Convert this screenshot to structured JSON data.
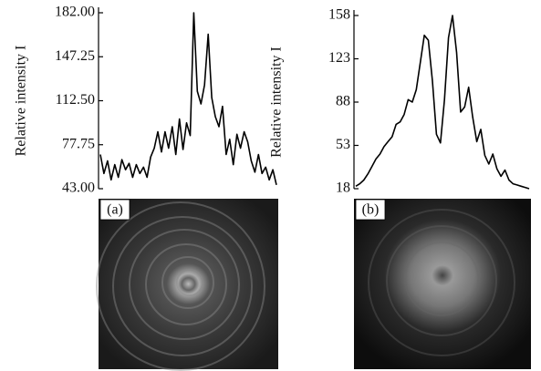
{
  "chart_data": [
    {
      "type": "line",
      "label": "(a)",
      "ylabel": "Relative intensity I",
      "color": "#000000",
      "categories": [
        null,
        null,
        null,
        null,
        null,
        null,
        null,
        null,
        null,
        null,
        null,
        null,
        null,
        null,
        null,
        null,
        null,
        null,
        null,
        null,
        null,
        null,
        null,
        null,
        null,
        null,
        null,
        null,
        null,
        null,
        null,
        null,
        null,
        null,
        null,
        null,
        null,
        null,
        null,
        null,
        null,
        null,
        null,
        null,
        null,
        null,
        null,
        null,
        null,
        null
      ],
      "values": [
        70,
        55,
        65,
        50,
        62,
        52,
        66,
        58,
        63,
        52,
        62,
        55,
        60,
        52,
        68,
        75,
        88,
        72,
        88,
        75,
        92,
        70,
        98,
        74,
        95,
        85,
        182,
        120,
        110,
        125,
        165,
        115,
        100,
        92,
        108,
        70,
        82,
        62,
        86,
        75,
        88,
        80,
        65,
        56,
        70,
        55,
        60,
        50,
        58,
        46
      ],
      "ylim": [
        43,
        182
      ],
      "yticks": [
        {
          "value": 182,
          "label": "182.00"
        },
        {
          "value": 147.25,
          "label": "147.25"
        },
        {
          "value": 112.5,
          "label": "112.50"
        },
        {
          "value": 77.75,
          "label": "77.75"
        },
        {
          "value": 43,
          "label": "43.00"
        }
      ]
    },
    {
      "type": "line",
      "label": "(b)",
      "ylabel": "Relative intensity I",
      "color": "#000000",
      "categories": [
        null,
        null,
        null,
        null,
        null,
        null,
        null,
        null,
        null,
        null,
        null,
        null,
        null,
        null,
        null,
        null,
        null,
        null,
        null,
        null,
        null,
        null,
        null,
        null,
        null,
        null,
        null,
        null,
        null,
        null,
        null,
        null,
        null,
        null,
        null,
        null,
        null,
        null,
        null,
        null,
        null,
        null,
        null,
        null
      ],
      "values": [
        20,
        22,
        25,
        30,
        36,
        42,
        46,
        52,
        56,
        60,
        70,
        72,
        78,
        90,
        88,
        98,
        120,
        142,
        138,
        105,
        62,
        55,
        90,
        140,
        158,
        128,
        80,
        84,
        100,
        76,
        56,
        66,
        45,
        38,
        46,
        34,
        28,
        33,
        25,
        22,
        21,
        20,
        19,
        18
      ],
      "ylim": [
        18,
        158
      ],
      "yticks": [
        158,
        123,
        88,
        53,
        18
      ]
    }
  ]
}
